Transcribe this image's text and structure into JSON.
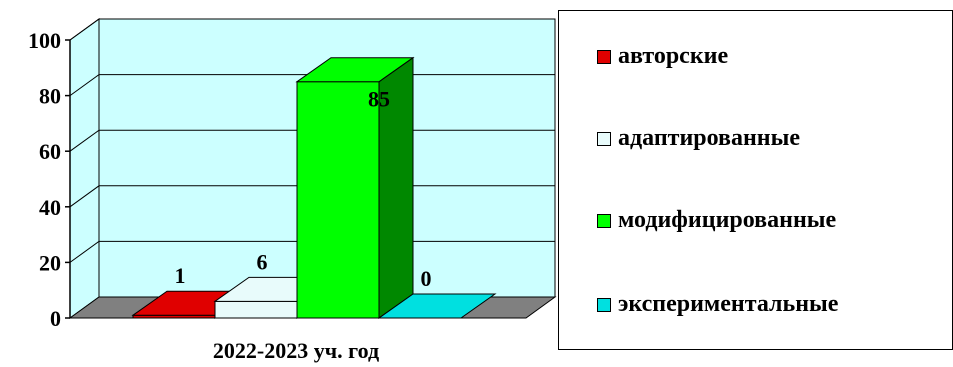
{
  "chart_data": {
    "type": "bar",
    "categories": [
      "2022-2023 уч. год"
    ],
    "series": [
      {
        "name": "авторские",
        "values": [
          1
        ],
        "color": "#e00000",
        "side_color": "#a00000"
      },
      {
        "name": "адаптированные",
        "values": [
          6
        ],
        "color": "#e8fbfb",
        "side_color": "#a9c4c4"
      },
      {
        "name": "модифицированные",
        "values": [
          85
        ],
        "color": "#00ff00",
        "side_color": "#008800"
      },
      {
        "name": "экспериментальные",
        "values": [
          0
        ],
        "color": "#00e0e0",
        "side_color": "#00a0a0"
      }
    ],
    "data_labels": [
      "1",
      "6",
      "85",
      "0"
    ],
    "yticks": [
      "0",
      "20",
      "40",
      "60",
      "80",
      "100"
    ],
    "ylim": [
      0,
      100
    ],
    "style": "3d-column",
    "plot_wall_color": "#ccffff",
    "floor_color": "#808080",
    "grid": true,
    "legend_position": "right"
  }
}
